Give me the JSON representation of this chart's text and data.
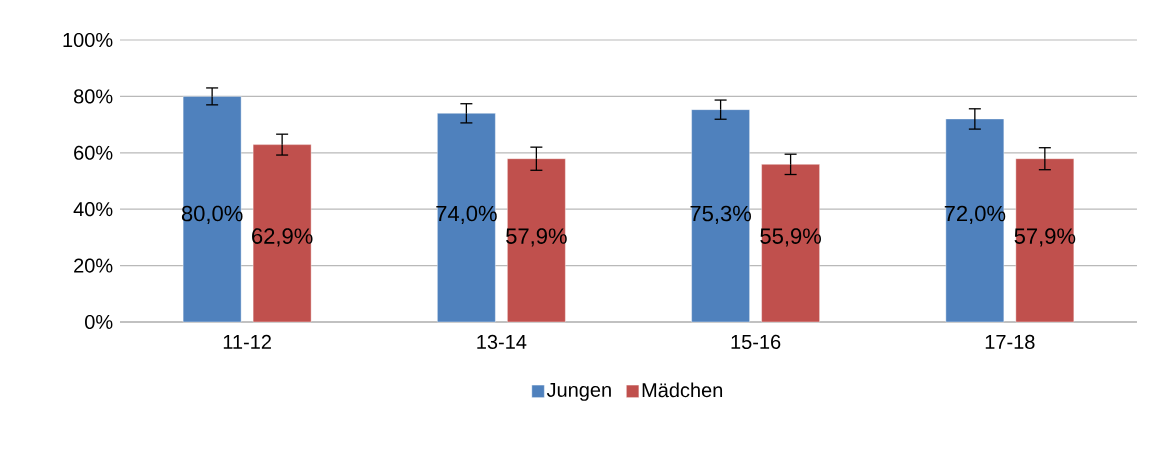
{
  "chart_data": {
    "type": "bar",
    "categories": [
      "11-12",
      "13-14",
      "15-16",
      "17-18"
    ],
    "series": [
      {
        "name": "Jungen",
        "color": "#4f81bd",
        "values": [
          80.0,
          74.0,
          75.3,
          72.0
        ],
        "errors": [
          3.0,
          3.4,
          3.4,
          3.6
        ],
        "value_labels": [
          "80,0%",
          "74,0%",
          "75,3%",
          "72,0%"
        ]
      },
      {
        "name": "Mädchen",
        "color": "#c0504d",
        "values": [
          62.9,
          57.9,
          55.9,
          57.9
        ],
        "errors": [
          3.7,
          4.1,
          3.6,
          3.9
        ],
        "value_labels": [
          "62,9%",
          "57,9%",
          "55,9%",
          "57,9%"
        ]
      }
    ],
    "ylim": [
      0,
      100
    ],
    "yticks": [
      {
        "value": 0,
        "label": "0%"
      },
      {
        "value": 20,
        "label": "20%"
      },
      {
        "value": 40,
        "label": "40%"
      },
      {
        "value": 60,
        "label": "60%"
      },
      {
        "value": 80,
        "label": "80%"
      },
      {
        "value": 100,
        "label": "100%"
      }
    ],
    "grid": "y",
    "legend": "bottom"
  }
}
